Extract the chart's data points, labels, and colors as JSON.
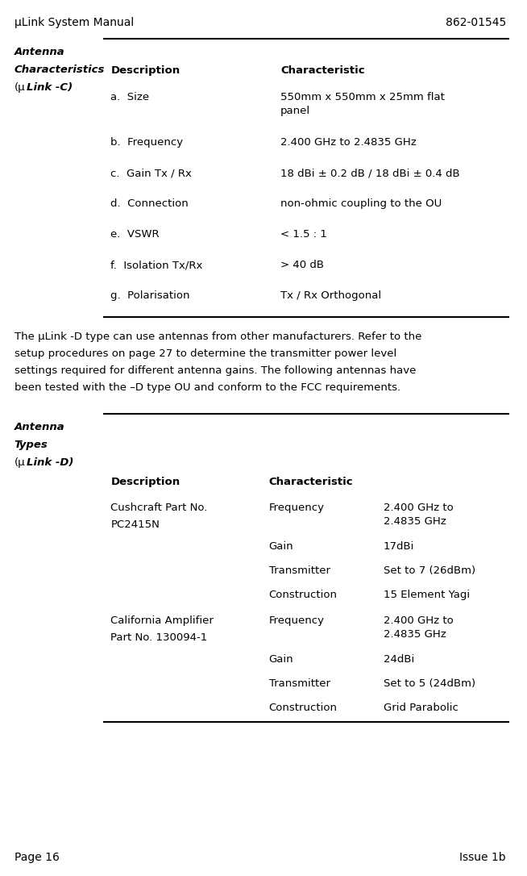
{
  "header_left": "μLink System Manual",
  "header_right": "862-01545",
  "footer_left": "Page 16",
  "footer_right": "Issue 1b",
  "section1_label_line1": "Antenna",
  "section1_label_line2": "Characteristics",
  "section1_label_line3_mu": "(μ",
  "section1_label_line3_rest": "Link -C)",
  "section1_col1_header": "Description",
  "section1_col2_header": "Characteristic",
  "section1_rows": [
    [
      "a.",
      "Size",
      "550mm x 550mm x 25mm flat\npanel"
    ],
    [
      "b.",
      "Frequency",
      "2.400 GHz to 2.4835 GHz"
    ],
    [
      "c.",
      "Gain Tx / Rx",
      "18 dBi ± 0.2 dB / 18 dBi ± 0.4 dB"
    ],
    [
      "d.",
      "Connection",
      "non-ohmic coupling to the OU"
    ],
    [
      "e.",
      "VSWR",
      "< 1.5 : 1"
    ],
    [
      "f.",
      "Isolation Tx/Rx",
      "> 40 dB"
    ],
    [
      "g.",
      "Polarisation",
      "Tx / Rx Orthogonal"
    ]
  ],
  "para_lines": [
    "The μLink -D type can use antennas from other manufacturers. Refer to the",
    "setup procedures on page 27 to determine the transmitter power level",
    "settings required for different antenna gains. The following antennas have",
    "been tested with the –D type OU and conform to the FCC requirements."
  ],
  "section2_label_line1": "Antenna",
  "section2_label_line2": "Types",
  "section2_label_line3_mu": "(μ",
  "section2_label_line3_rest": "Link -D)",
  "section2_col1_header": "Description",
  "section2_col2_header": "Characteristic",
  "section2_entries": [
    {
      "desc_line1": "Cushcraft Part No.",
      "desc_line2": "PC2415N",
      "rows": [
        [
          "Frequency",
          "2.400 GHz to\n2.4835 GHz"
        ],
        [
          "Gain",
          "17dBi"
        ],
        [
          "Transmitter",
          "Set to 7 (26dBm)"
        ],
        [
          "Construction",
          "15 Element Yagi"
        ]
      ]
    },
    {
      "desc_line1": "California Amplifier",
      "desc_line2": "Part No. 130094-1",
      "rows": [
        [
          "Frequency",
          "2.400 GHz to\n2.4835 GHz"
        ],
        [
          "Gain",
          "24dBi"
        ],
        [
          "Transmitter",
          "Set to 5 (24dBm)"
        ],
        [
          "Construction",
          "Grid Parabolic"
        ]
      ]
    }
  ],
  "bg_color": "#ffffff",
  "text_color": "#000000",
  "font_size_body": 9.5,
  "font_size_label": 9.5
}
